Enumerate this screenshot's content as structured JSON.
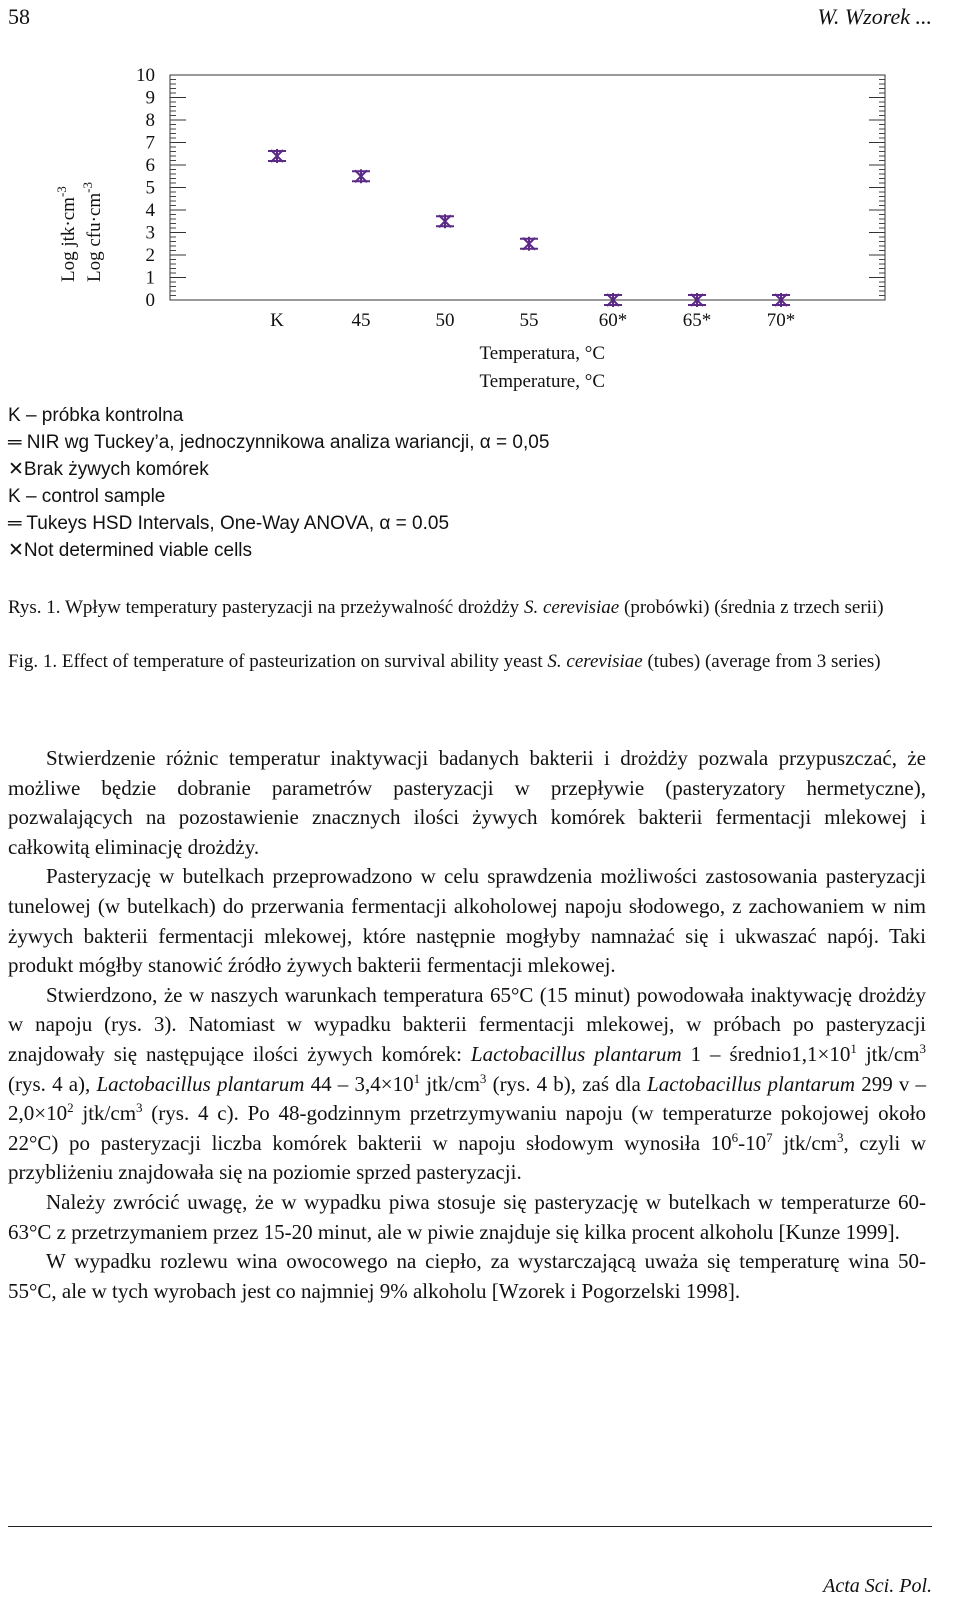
{
  "header": {
    "page_number": "58",
    "running_title": "W. Wzorek ..."
  },
  "chart_data": {
    "type": "scatter",
    "y_label": [
      {
        "text": "Log jtk·cm",
        "sup": "-3"
      },
      {
        "text": "Log cfu·cm",
        "sup": "-3"
      }
    ],
    "x_label": [
      "Temperatura, °C",
      "Temperature, °C"
    ],
    "categories": [
      "K",
      "45",
      "50",
      "55",
      "60*",
      "65*",
      "70*"
    ],
    "values": [
      6.4,
      5.5,
      3.5,
      2.5,
      0,
      0,
      0
    ],
    "color": "#5b2a86",
    "ylim": [
      0,
      10
    ],
    "yticks": [
      0,
      1,
      2,
      3,
      4,
      5,
      6,
      7,
      8,
      9,
      10
    ]
  },
  "legend": [
    "K – próbka kontrolna",
    "═ NIR wg Tuckey’a, jednoczynnikowa analiza wariancji, α = 0,05",
    "✕Brak żywych komórek",
    "K – control sample",
    "═ Tukeys HSD Intervals, One-Way ANOVA, α = 0.05",
    "✕Not determined viable cells"
  ],
  "captions": [
    [
      "Rys. 1. Wpływ temperatury pasteryzacji na przeżywalność drożdży ",
      {
        "italic": "S. cerevisiae"
      },
      " (probówki) (średnia z trzech serii)"
    ],
    [
      "Fig. 1. Effect of temperature of pasteurization on survival ability yeast ",
      {
        "italic": "S. cerevisiae"
      },
      " (tubes) (average from 3 series)"
    ]
  ],
  "paragraphs": [
    [
      "Stwierdzenie różnic temperatur inaktywacji badanych bakterii i drożdży pozwala przypuszczać, że możliwe będzie dobranie parametrów pasteryzacji w przepływie (pasteryzatory hermetyczne), pozwalających na pozostawienie znacznych ilości żywych komórek bakterii fermentacji mlekowej i całkowitą eliminację drożdży."
    ],
    [
      "Pasteryzację w butelkach przeprowadzono w celu sprawdzenia możliwości zastosowania pasteryzacji tunelowej (w butelkach) do przerwania fermentacji alkoholowej napoju słodowego, z zachowaniem w nim żywych bakterii fermentacji mlekowej, które następnie mogłyby namnażać się i ukwaszać napój. Taki produkt mógłby stanowić źródło żywych bakterii fermentacji mlekowej."
    ],
    [
      "Stwierdzono, że w naszych warunkach temperatura 65°C (15 minut) powodowała inaktywację drożdży w napoju (rys. 3). Natomiast w wypadku bakterii fermentacji mlekowej, w próbach po pasteryzacji znajdowały się następujące ilości żywych komórek: ",
      {
        "italic": "Lactobacillus plantarum"
      },
      " 1 – średnio1,1×10",
      {
        "sup": "1"
      },
      " jtk/cm",
      {
        "sup": "3"
      },
      " (rys. 4 a), ",
      {
        "italic": "Lactobacillus plantarum"
      },
      " 44 – 3,4×10",
      {
        "sup": "1"
      },
      " jtk/cm",
      {
        "sup": "3"
      },
      " (rys. 4 b), zaś dla ",
      {
        "italic": "Lactobacillus plantarum"
      },
      " 299 v – 2,0×10",
      {
        "sup": "2"
      },
      " jtk/cm",
      {
        "sup": "3"
      },
      " (rys. 4 c). Po 48-godzinnym przetrzymywaniu napoju (w temperaturze pokojowej około 22°C) po pasteryzacji liczba komórek bakterii w napoju słodowym wynosiła 10",
      {
        "sup": "6"
      },
      "-10",
      {
        "sup": "7"
      },
      " jtk/cm",
      {
        "sup": "3"
      },
      ", czyli w przybliżeniu znajdowała się na poziomie sprzed pasteryzacji."
    ],
    [
      "Należy zwrócić uwagę, że w wypadku piwa stosuje się pasteryzację w butelkach w temperaturze 60-63°C z przetrzymaniem przez 15-20 minut, ale w piwie znajduje się kilka procent alkoholu [Kunze 1999]."
    ],
    [
      "W wypadku rozlewu wina owocowego na ciepło, za wystarczającą uważa się temperaturę wina 50-55°C, ale w tych wyrobach jest co najmniej 9% alkoholu [Wzorek i Pogorzelski 1998]."
    ]
  ],
  "footer": {
    "journal": "Acta Sci. Pol."
  }
}
